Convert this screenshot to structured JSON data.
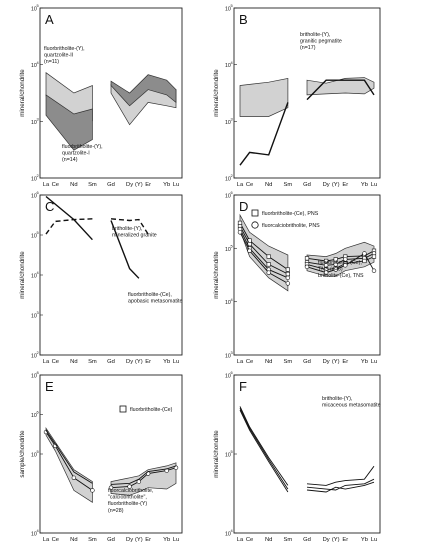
{
  "chart_data": [
    {
      "type": "line",
      "letter": "A",
      "ylabel": "mineral/chondrite",
      "y_scale": "log",
      "ylim": [
        10,
        100000
      ],
      "y_ticks": [
        "10",
        "10",
        "10",
        "10"
      ],
      "y_tick_exponents": [
        "5",
        "4",
        "3",
        "2"
      ],
      "categories": [
        "La",
        "Ce",
        "Pr",
        "Nd",
        "Pm",
        "Sm",
        "Eu",
        "Gd",
        "Tb",
        "Dy",
        "Y",
        "Er",
        "Tm",
        "Yb",
        "Lu"
      ],
      "x_tick_labels": [
        "La",
        "Ce",
        "Nd",
        "Sm",
        "Gd",
        "Dy",
        "(Y)",
        "Er",
        "Yb",
        "Lu"
      ],
      "bands": [
        {
          "name": "fluorbritholite-(Y), quartzolite-II",
          "fill": "#d2d2d2",
          "segments": [
            {
              "x": [
                "La",
                "Nd",
                "Sm"
              ],
              "upper": [
                3000,
                1000,
                1500
              ],
              "lower": [
                850,
                160,
                220
              ]
            },
            {
              "x": [
                "Gd",
                "Dy",
                "Er",
                "Yb",
                "Lu"
              ],
              "upper": [
                1600,
                1000,
                1800,
                1200,
                1200
              ],
              "lower": [
                1000,
                180,
                600,
                500,
                450
              ]
            }
          ]
        },
        {
          "name": "fluorbritholite-(Y), quartzolite-I",
          "fill": "#8c8c8c",
          "segments": [
            {
              "x": [
                "La",
                "Nd",
                "Sm"
              ],
              "upper": [
                900,
                320,
                420
              ],
              "lower": [
                300,
                45,
                80
              ]
            },
            {
              "x": [
                "Gd",
                "Dy",
                "Er",
                "Yb",
                "Lu"
              ],
              "upper": [
                1900,
                1000,
                2700,
                2000,
                1200
              ],
              "lower": [
                1500,
                500,
                1200,
                900,
                600
              ]
            }
          ]
        }
      ],
      "annotations": [
        {
          "text": "fluorbritholite-(Y), quartzolite-II",
          "sub": "(n=11)"
        },
        {
          "text": "fluorbritholite-(Y), quartzolite-I",
          "sub": "(n=14)"
        }
      ]
    },
    {
      "type": "line",
      "letter": "B",
      "ylabel": "mineral/chondrite",
      "y_scale": "log",
      "ylim": [
        10,
        100000
      ],
      "y_ticks": [
        "10",
        "10",
        "10",
        "10"
      ],
      "y_tick_exponents": [
        "5",
        "4",
        "3",
        "2"
      ],
      "categories": [
        "La",
        "Ce",
        "Pr",
        "Nd",
        "Pm",
        "Sm",
        "Eu",
        "Gd",
        "Tb",
        "Dy",
        "Y",
        "Er",
        "Tm",
        "Yb",
        "Lu"
      ],
      "x_tick_labels": [
        "La",
        "Ce",
        "Nd",
        "Sm",
        "Gd",
        "Dy",
        "(Y)",
        "Er",
        "Yb",
        "Lu"
      ],
      "bands": [
        {
          "name": "britholite-(Y), granitic pegmatite",
          "fill": "#d2d2d2",
          "segments": [
            {
              "x": [
                "La",
                "Nd",
                "Sm"
              ],
              "upper": [
                1500,
                1800,
                2200
              ],
              "lower": [
                280,
                280,
                450
              ]
            },
            {
              "x": [
                "Gd",
                "Dy",
                "Er",
                "Yb",
                "Lu"
              ],
              "upper": [
                2000,
                1700,
                2200,
                2300,
                1800
              ],
              "lower": [
                900,
                950,
                1000,
                950,
                1300
              ]
            }
          ]
        }
      ],
      "series": [
        {
          "x": [
            "La",
            "Ce",
            "Nd",
            "Sm"
          ],
          "values": [
            20,
            40,
            35,
            600
          ]
        },
        {
          "x": [
            "Gd",
            "Dy",
            "Er",
            "Yb",
            "Lu"
          ],
          "values": [
            700,
            2000,
            2000,
            2000,
            900
          ]
        }
      ],
      "annotations": [
        {
          "text": "britholite-(Y), granitic pegmatite",
          "sub": "(n=17)"
        }
      ]
    },
    {
      "type": "line",
      "letter": "C",
      "ylabel": "mineral/chondrite",
      "y_scale": "log",
      "ylim": [
        10,
        1000000
      ],
      "y_ticks": [
        "10",
        "10",
        "10",
        "10",
        "10"
      ],
      "y_tick_exponents": [
        "6",
        "5",
        "4",
        "3",
        "2"
      ],
      "categories": [
        "La",
        "Ce",
        "Pr",
        "Nd",
        "Pm",
        "Sm",
        "Eu",
        "Gd",
        "Tb",
        "Dy",
        "Y",
        "Er",
        "Tm",
        "Yb",
        "Lu"
      ],
      "x_tick_labels": [
        "La",
        "Ce",
        "Nd",
        "Sm",
        "Gd",
        "Dy",
        "(Y)",
        "Er",
        "Yb",
        "Lu"
      ],
      "series": [
        {
          "x": [
            "La",
            "Ce",
            "Nd",
            "Sm"
          ],
          "values": [
            60000,
            150000,
            170000,
            180000
          ],
          "dashed": true
        },
        {
          "x": [
            "Gd",
            "Dy",
            "Y",
            "Er"
          ],
          "values": [
            180000,
            160000,
            170000,
            60000
          ],
          "dashed": true
        },
        {
          "x": [
            "La",
            "Nd",
            "Sm"
          ],
          "values": [
            900000,
            170000,
            40000
          ]
        },
        {
          "x": [
            "Gd",
            "Dy",
            "Y"
          ],
          "values": [
            160000,
            5000,
            2500
          ]
        }
      ],
      "annotations": [
        {
          "text": "britholite-(Y), mineralized granite",
          "sub": ""
        },
        {
          "text": "fluorbritholite-(Ce), apobasic metasomatite",
          "sub": ""
        }
      ]
    },
    {
      "type": "line",
      "letter": "D",
      "ylabel": "mineral/chondrite",
      "y_scale": "log",
      "ylim": [
        1000,
        1000000
      ],
      "y_ticks": [
        "10",
        "10",
        "10",
        "10"
      ],
      "y_tick_exponents": [
        "6",
        "5",
        "4",
        "3"
      ],
      "categories": [
        "La",
        "Ce",
        "Pr",
        "Nd",
        "Pm",
        "Sm",
        "Eu",
        "Gd",
        "Tb",
        "Dy",
        "Y",
        "Er",
        "Tm",
        "Yb",
        "Lu"
      ],
      "x_tick_labels": [
        "La",
        "Ce",
        "Nd",
        "Sm",
        "Gd",
        "Dy",
        "(Y)",
        "Er",
        "Yb",
        "Lu"
      ],
      "legend": [
        {
          "marker": "square",
          "label": "fluorbritholite-(Ce), PNS"
        },
        {
          "marker": "circle",
          "label": "fluorcalciobritholite, PNS"
        }
      ],
      "bands": [
        {
          "name": "TNS",
          "fill": "#d2d2d2",
          "segments": [
            {
              "x": [
                "La",
                "Ce",
                "Nd",
                "Sm"
              ],
              "upper": [
                420000,
                200000,
                110000,
                75000
              ],
              "lower": [
                220000,
                70000,
                28000,
                16000
              ]
            },
            {
              "x": [
                "Gd",
                "Dy",
                "Y",
                "Er",
                "Yb",
                "Lu"
              ],
              "upper": [
                75000,
                70000,
                80000,
                100000,
                130000,
                110000
              ],
              "lower": [
                38000,
                30000,
                30000,
                38000,
                45000,
                55000
              ]
            }
          ]
        }
      ],
      "series": [
        {
          "marker": "square",
          "x": [
            "La",
            "Ce",
            "Nd",
            "Sm"
          ],
          "values": [
            300000,
            140000,
            70000,
            40000
          ]
        },
        {
          "marker": "square",
          "x": [
            "La",
            "Ce",
            "Nd",
            "Sm"
          ],
          "values": [
            260000,
            120000,
            50000,
            33000
          ]
        },
        {
          "marker": "circle",
          "x": [
            "La",
            "Ce",
            "Nd",
            "Sm"
          ],
          "values": [
            230000,
            100000,
            40000,
            28000
          ]
        },
        {
          "marker": "circle",
          "x": [
            "La",
            "Ce",
            "Nd",
            "Sm"
          ],
          "values": [
            200000,
            90000,
            35000,
            22000
          ]
        },
        {
          "marker": "square",
          "x": [
            "Gd",
            "Dy",
            "Y",
            "Er",
            "Yb",
            "Lu"
          ],
          "values": [
            65000,
            58000,
            62000,
            70000,
            72000,
            90000
          ]
        },
        {
          "marker": "circle",
          "x": [
            "Gd",
            "Dy",
            "Y",
            "Er",
            "Yb",
            "Lu"
          ],
          "values": [
            55000,
            48000,
            50000,
            62000,
            65000,
            80000
          ]
        },
        {
          "marker": "square",
          "x": [
            "Gd",
            "Dy",
            "Y",
            "Er",
            "Yb",
            "Lu"
          ],
          "values": [
            50000,
            40000,
            42000,
            52000,
            58000,
            70000
          ]
        },
        {
          "marker": "circle",
          "x": [
            "Gd",
            "Dy",
            "Y",
            "Er",
            "Yb",
            "Lu"
          ],
          "values": [
            45000,
            35000,
            40000,
            48000,
            80000,
            38000
          ]
        }
      ],
      "annotations": [
        {
          "text": "fluorbritholite-(Ce), TNS (n=8)",
          "sub": "britholite-(Ce), TNS"
        }
      ]
    },
    {
      "type": "line",
      "letter": "E",
      "ylabel": "sample/chondrite",
      "y_scale": "log",
      "ylim": [
        10000,
        100000000
      ],
      "y_ticks": [
        "10",
        "10",
        "10",
        "10"
      ],
      "y_tick_exponents": [
        "8",
        "6",
        "5",
        "4"
      ],
      "categories": [
        "La",
        "Ce",
        "Pr",
        "Nd",
        "Pm",
        "Sm",
        "Eu",
        "Gd",
        "Tb",
        "Dy",
        "Y",
        "Er",
        "Tm",
        "Yb",
        "Lu"
      ],
      "x_tick_labels": [
        "La",
        "Ce",
        "Nd",
        "Sm",
        "Gd",
        "Dy",
        "(Y)",
        "Er",
        "Yb",
        "Lu"
      ],
      "legend": [
        {
          "marker": "square",
          "label": "fluorbritholite-(Ce)"
        }
      ],
      "bands": [
        {
          "name": "fluorcalciobritholite, calciobritholite, fluorbritholite-(Y)",
          "fill": "#d2d2d2",
          "segments": [
            {
              "x": [
                "La",
                "Ce",
                "Nd",
                "Sm"
              ],
              "upper": [
                4500000,
                2000000,
                400000,
                200000
              ],
              "lower": [
                3000000,
                1200000,
                120000,
                60000
              ]
            },
            {
              "x": [
                "Gd",
                "Dy",
                "Y",
                "Er",
                "Yb",
                "Lu"
              ],
              "upper": [
                200000,
                250000,
                280000,
                400000,
                500000,
                600000
              ],
              "lower": [
                100000,
                90000,
                110000,
                140000,
                130000,
                180000
              ]
            }
          ]
        }
      ],
      "series": [
        {
          "marker": "circle",
          "x": [
            "La",
            "Ce",
            "Nd",
            "Sm"
          ],
          "values": [
            3600000,
            1600000,
            250000,
            120000
          ]
        },
        {
          "marker": "none",
          "x": [
            "La",
            "Ce",
            "Nd",
            "Sm"
          ],
          "values": [
            4000000,
            1800000,
            350000,
            180000
          ]
        },
        {
          "marker": "circle",
          "x": [
            "Gd",
            "Dy",
            "Y",
            "Er",
            "Yb",
            "Lu"
          ],
          "values": [
            140000,
            150000,
            200000,
            320000,
            380000,
            450000
          ]
        },
        {
          "marker": "none",
          "x": [
            "Gd",
            "Dy",
            "Y",
            "Er",
            "Yb",
            "Lu"
          ],
          "values": [
            170000,
            180000,
            230000,
            360000,
            420000,
            500000
          ]
        }
      ],
      "annotations": [
        {
          "text": "fluorcalciobritholite, \"calciobritholite\", fluorbritholite-(Y)",
          "sub": "(n=28)"
        }
      ]
    },
    {
      "type": "line",
      "letter": "F",
      "ylabel": "mineral/chondrite",
      "y_scale": "log",
      "ylim": [
        10000,
        1000000
      ],
      "y_ticks": [
        "10",
        "10",
        "10"
      ],
      "y_tick_exponents": [
        "6",
        "5",
        "4"
      ],
      "categories": [
        "La",
        "Ce",
        "Pr",
        "Nd",
        "Pm",
        "Sm",
        "Eu",
        "Gd",
        "Tb",
        "Dy",
        "Y",
        "Er",
        "Tm",
        "Yb",
        "Lu"
      ],
      "x_tick_labels": [
        "La",
        "Ce",
        "Nd",
        "Sm",
        "Gd",
        "Dy",
        "(Y)",
        "Er",
        "Yb",
        "Lu"
      ],
      "series": [
        {
          "x": [
            "La",
            "Ce",
            "Nd",
            "Sm"
          ],
          "values": [
            400000,
            220000,
            90000,
            40000
          ]
        },
        {
          "x": [
            "La",
            "Ce",
            "Nd",
            "Sm"
          ],
          "values": [
            380000,
            210000,
            85000,
            36000
          ]
        },
        {
          "x": [
            "La",
            "Ce",
            "Nd",
            "Sm"
          ],
          "values": [
            360000,
            200000,
            80000,
            33000
          ]
        },
        {
          "x": [
            "Gd",
            "Dy",
            "Y",
            "Er",
            "Yb",
            "Lu"
          ],
          "values": [
            42000,
            40000,
            44000,
            46000,
            48000,
            70000
          ]
        },
        {
          "x": [
            "Gd",
            "Dy",
            "Y",
            "Er",
            "Yb",
            "Lu"
          ],
          "values": [
            38000,
            36000,
            35000,
            40000,
            42000,
            48000
          ]
        },
        {
          "x": [
            "Gd",
            "Dy",
            "Y",
            "Er",
            "Yb",
            "Lu"
          ],
          "values": [
            35000,
            33000,
            38000,
            36000,
            40000,
            44000
          ]
        }
      ],
      "annotations": [
        {
          "text": "britholite-(Y), micaceous metasomatite",
          "sub": ""
        }
      ]
    }
  ]
}
